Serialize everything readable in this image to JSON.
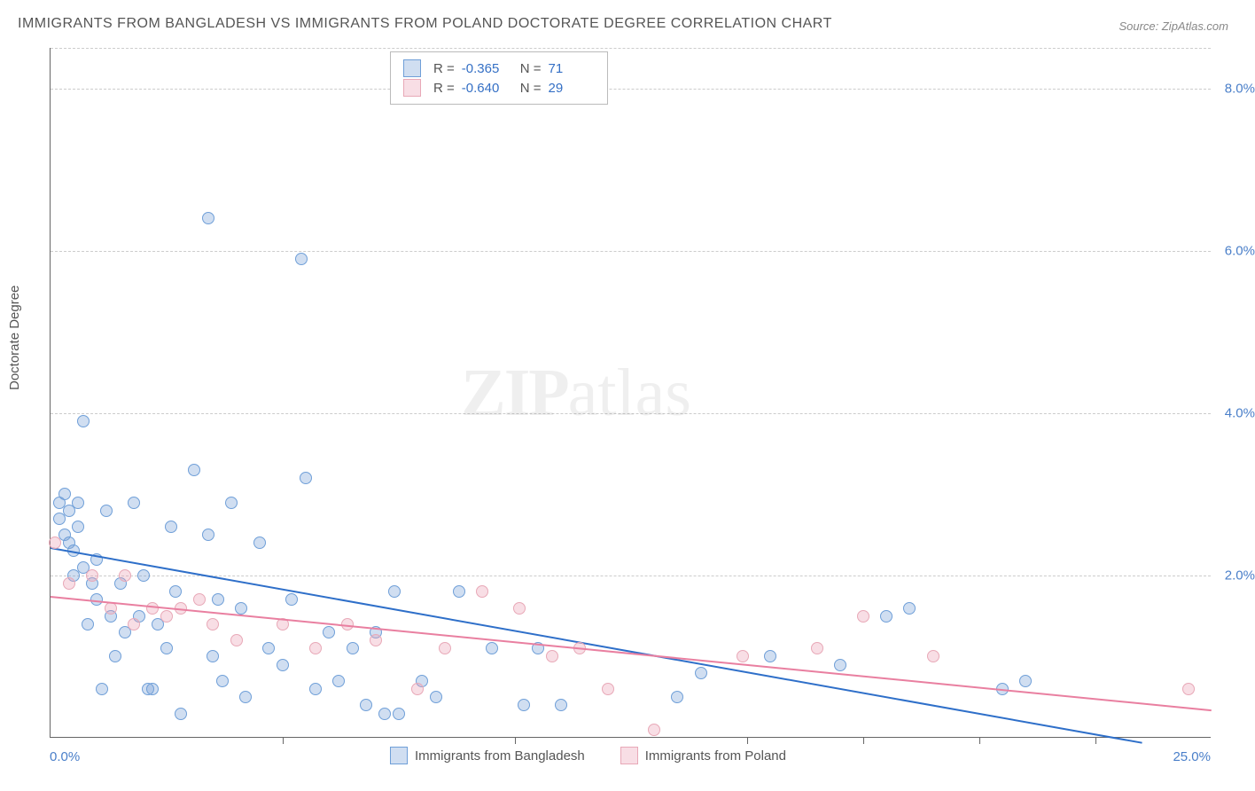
{
  "title": "IMMIGRANTS FROM BANGLADESH VS IMMIGRANTS FROM POLAND DOCTORATE DEGREE CORRELATION CHART",
  "source_label": "Source: ",
  "source_name": "ZipAtlas.com",
  "watermark_zip": "ZIP",
  "watermark_atlas": "atlas",
  "yaxis_title": "Doctorate Degree",
  "chart": {
    "type": "scatter-with-trend",
    "background_color": "#ffffff",
    "grid_color": "#cccccc",
    "axis_color": "#666666",
    "text_color": "#555555",
    "value_color": "#3570c5",
    "tick_label_color": "#4a7fc9",
    "xlim": [
      0.0,
      25.0
    ],
    "ylim": [
      0.0,
      8.5
    ],
    "ytick_values": [
      2.0,
      4.0,
      6.0,
      8.0
    ],
    "ytick_labels": [
      "2.0%",
      "4.0%",
      "6.0%",
      "8.0%"
    ],
    "xtick_values": [
      5.0,
      10.0,
      15.0,
      17.5,
      20.0,
      22.5
    ],
    "xlabel_min": "0.0%",
    "xlabel_max": "25.0%",
    "marker_radius": 7,
    "marker_stroke_width": 1,
    "trend_line_width": 2
  },
  "series": [
    {
      "name": "Immigrants from Bangladesh",
      "fill_color": "rgba(120,160,215,0.35)",
      "stroke_color": "#6f9fd8",
      "trend_color": "#2e6fc9",
      "R_label": "R =",
      "R": "-0.365",
      "N_label": "N =",
      "N": "71",
      "trend": {
        "x1": 0.0,
        "y1": 2.35,
        "x2": 23.5,
        "y2": -0.05
      },
      "points": [
        [
          0.2,
          2.9
        ],
        [
          0.2,
          2.7
        ],
        [
          0.3,
          3.0
        ],
        [
          0.3,
          2.5
        ],
        [
          0.4,
          2.4
        ],
        [
          0.4,
          2.8
        ],
        [
          0.5,
          2.0
        ],
        [
          0.5,
          2.3
        ],
        [
          0.6,
          2.6
        ],
        [
          0.6,
          2.9
        ],
        [
          0.7,
          3.9
        ],
        [
          0.7,
          2.1
        ],
        [
          0.8,
          1.4
        ],
        [
          0.9,
          1.9
        ],
        [
          1.0,
          2.2
        ],
        [
          1.0,
          1.7
        ],
        [
          1.1,
          0.6
        ],
        [
          1.2,
          2.8
        ],
        [
          1.3,
          1.5
        ],
        [
          1.4,
          1.0
        ],
        [
          1.5,
          1.9
        ],
        [
          1.6,
          1.3
        ],
        [
          1.8,
          2.9
        ],
        [
          1.9,
          1.5
        ],
        [
          2.0,
          2.0
        ],
        [
          2.1,
          0.6
        ],
        [
          2.2,
          0.6
        ],
        [
          2.3,
          1.4
        ],
        [
          2.5,
          1.1
        ],
        [
          2.6,
          2.6
        ],
        [
          2.7,
          1.8
        ],
        [
          2.8,
          0.3
        ],
        [
          3.1,
          3.3
        ],
        [
          3.4,
          2.5
        ],
        [
          3.4,
          6.4
        ],
        [
          3.5,
          1.0
        ],
        [
          3.6,
          1.7
        ],
        [
          3.7,
          0.7
        ],
        [
          3.9,
          2.9
        ],
        [
          4.1,
          1.6
        ],
        [
          4.2,
          0.5
        ],
        [
          4.5,
          2.4
        ],
        [
          4.7,
          1.1
        ],
        [
          5.0,
          0.9
        ],
        [
          5.2,
          1.7
        ],
        [
          5.4,
          5.9
        ],
        [
          5.5,
          3.2
        ],
        [
          5.7,
          0.6
        ],
        [
          6.0,
          1.3
        ],
        [
          6.2,
          0.7
        ],
        [
          6.5,
          1.1
        ],
        [
          6.8,
          0.4
        ],
        [
          7.0,
          1.3
        ],
        [
          7.2,
          0.3
        ],
        [
          7.4,
          1.8
        ],
        [
          7.5,
          0.3
        ],
        [
          8.0,
          0.7
        ],
        [
          8.3,
          0.5
        ],
        [
          8.8,
          1.8
        ],
        [
          9.5,
          1.1
        ],
        [
          10.2,
          0.4
        ],
        [
          10.5,
          1.1
        ],
        [
          11.0,
          0.4
        ],
        [
          13.5,
          0.5
        ],
        [
          14.0,
          0.8
        ],
        [
          15.5,
          1.0
        ],
        [
          17.0,
          0.9
        ],
        [
          18.0,
          1.5
        ],
        [
          18.5,
          1.6
        ],
        [
          20.5,
          0.6
        ],
        [
          21.0,
          0.7
        ]
      ]
    },
    {
      "name": "Immigrants from Poland",
      "fill_color": "rgba(235,160,180,0.35)",
      "stroke_color": "#e8a8b7",
      "trend_color": "#e97fa0",
      "R_label": "R =",
      "R": "-0.640",
      "N_label": "N =",
      "N": "29",
      "trend": {
        "x1": 0.0,
        "y1": 1.75,
        "x2": 25.0,
        "y2": 0.35
      },
      "points": [
        [
          0.1,
          2.4
        ],
        [
          0.4,
          1.9
        ],
        [
          0.9,
          2.0
        ],
        [
          1.3,
          1.6
        ],
        [
          1.6,
          2.0
        ],
        [
          1.8,
          1.4
        ],
        [
          2.2,
          1.6
        ],
        [
          2.5,
          1.5
        ],
        [
          2.8,
          1.6
        ],
        [
          3.2,
          1.7
        ],
        [
          3.5,
          1.4
        ],
        [
          4.0,
          1.2
        ],
        [
          5.0,
          1.4
        ],
        [
          5.7,
          1.1
        ],
        [
          6.4,
          1.4
        ],
        [
          7.0,
          1.2
        ],
        [
          7.9,
          0.6
        ],
        [
          8.5,
          1.1
        ],
        [
          9.3,
          1.8
        ],
        [
          10.1,
          1.6
        ],
        [
          10.8,
          1.0
        ],
        [
          11.4,
          1.1
        ],
        [
          12.0,
          0.6
        ],
        [
          13.0,
          0.1
        ],
        [
          14.9,
          1.0
        ],
        [
          16.5,
          1.1
        ],
        [
          17.5,
          1.5
        ],
        [
          19.0,
          1.0
        ],
        [
          24.5,
          0.6
        ]
      ]
    }
  ],
  "legend_bottom": [
    "Immigrants from Bangladesh",
    "Immigrants from Poland"
  ]
}
